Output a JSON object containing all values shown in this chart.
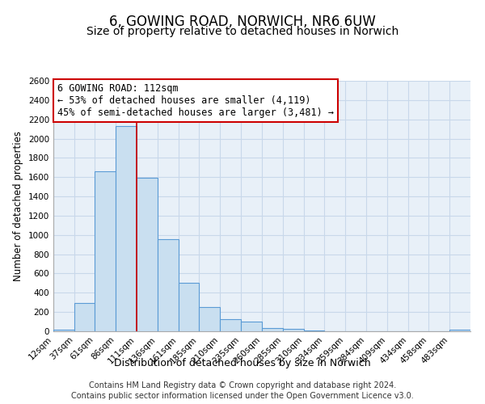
{
  "title": "6, GOWING ROAD, NORWICH, NR6 6UW",
  "subtitle": "Size of property relative to detached houses in Norwich",
  "xlabel": "Distribution of detached houses by size in Norwich",
  "ylabel": "Number of detached properties",
  "footer_line1": "Contains HM Land Registry data © Crown copyright and database right 2024.",
  "footer_line2": "Contains public sector information licensed under the Open Government Licence v3.0.",
  "annotation_title": "6 GOWING ROAD: 112sqm",
  "annotation_line2": "← 53% of detached houses are smaller (4,119)",
  "annotation_line3": "45% of semi-detached houses are larger (3,481) →",
  "bar_edges": [
    12,
    37,
    61,
    86,
    111,
    136,
    161,
    185,
    210,
    235,
    260,
    285,
    310,
    334,
    359,
    384,
    409,
    434,
    458,
    483,
    508
  ],
  "bar_heights": [
    18,
    295,
    1660,
    2130,
    1590,
    960,
    505,
    255,
    125,
    100,
    30,
    28,
    5,
    4,
    3,
    3,
    3,
    3,
    3,
    18
  ],
  "bar_color": "#c9dff0",
  "bar_edge_color": "#5b9bd5",
  "ylim": [
    0,
    2600
  ],
  "yticks": [
    0,
    200,
    400,
    600,
    800,
    1000,
    1200,
    1400,
    1600,
    1800,
    2000,
    2200,
    2400,
    2600
  ],
  "grid_color": "#c8d8ea",
  "bg_color": "#e8f0f8",
  "annotation_box_color": "#ffffff",
  "annotation_box_edge": "#cc0000",
  "property_line_x": 111,
  "property_line_color": "#cc0000",
  "title_fontsize": 12,
  "subtitle_fontsize": 10,
  "xlabel_fontsize": 9,
  "ylabel_fontsize": 8.5,
  "tick_fontsize": 7.5,
  "annotation_fontsize": 8.5,
  "footer_fontsize": 7
}
